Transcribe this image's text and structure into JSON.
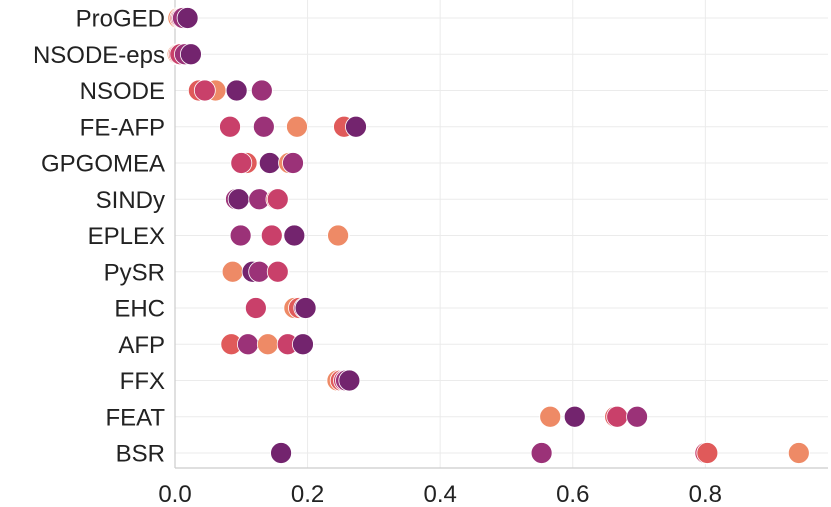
{
  "chart_data": {
    "type": "scatter",
    "title": "",
    "xlabel": "",
    "ylabel": "",
    "xlim": [
      0,
      0.985
    ],
    "xticks": [
      "0.0",
      "0.2",
      "0.4",
      "0.6",
      "0.8"
    ],
    "xtick_values": [
      0,
      0.2,
      0.4,
      0.6,
      0.8
    ],
    "grid": true,
    "palette": [
      "#ee8a66",
      "#e05a5a",
      "#c9406a",
      "#9b3278",
      "#73246e"
    ],
    "categories": [
      "ProGED",
      "NSODE-eps",
      "NSODE",
      "FE-AFP",
      "GPGOMEA",
      "SINDy",
      "EPLEX",
      "PySR",
      "EHC",
      "AFP",
      "FFX",
      "FEAT",
      "BSR"
    ],
    "points": [
      [
        {
          "x": 0.005,
          "c": 0
        },
        {
          "x": 0.008,
          "c": 1
        },
        {
          "x": 0.01,
          "c": 2
        },
        {
          "x": 0.012,
          "c": 3
        },
        {
          "x": 0.019,
          "c": 4
        }
      ],
      [
        {
          "x": 0.004,
          "c": 0
        },
        {
          "x": 0.006,
          "c": 1
        },
        {
          "x": 0.008,
          "c": 2
        },
        {
          "x": 0.015,
          "c": 3
        },
        {
          "x": 0.024,
          "c": 4
        }
      ],
      [
        {
          "x": 0.036,
          "c": 1
        },
        {
          "x": 0.061,
          "c": 0
        },
        {
          "x": 0.045,
          "c": 2
        },
        {
          "x": 0.093,
          "c": 4
        },
        {
          "x": 0.131,
          "c": 3
        }
      ],
      [
        {
          "x": 0.083,
          "c": 2
        },
        {
          "x": 0.134,
          "c": 3
        },
        {
          "x": 0.184,
          "c": 0
        },
        {
          "x": 0.255,
          "c": 1
        },
        {
          "x": 0.273,
          "c": 4
        }
      ],
      [
        {
          "x": 0.108,
          "c": 1
        },
        {
          "x": 0.1,
          "c": 2
        },
        {
          "x": 0.143,
          "c": 4
        },
        {
          "x": 0.172,
          "c": 0
        },
        {
          "x": 0.178,
          "c": 3
        }
      ],
      [
        {
          "x": 0.092,
          "c": 3
        },
        {
          "x": 0.096,
          "c": 4
        },
        {
          "x": 0.127,
          "c": 3
        },
        {
          "x": 0.153,
          "c": 1
        },
        {
          "x": 0.155,
          "c": 2
        }
      ],
      [
        {
          "x": 0.099,
          "c": 3
        },
        {
          "x": 0.146,
          "c": 2
        },
        {
          "x": 0.18,
          "c": 4
        },
        {
          "x": 0.247,
          "c": 0
        },
        {
          "x": 0.246,
          "c": 0
        }
      ],
      [
        {
          "x": 0.087,
          "c": 0
        },
        {
          "x": 0.117,
          "c": 4
        },
        {
          "x": 0.127,
          "c": 3
        },
        {
          "x": 0.156,
          "c": 2
        },
        {
          "x": 0.155,
          "c": 2
        }
      ],
      [
        {
          "x": 0.122,
          "c": 2
        },
        {
          "x": 0.18,
          "c": 0
        },
        {
          "x": 0.187,
          "c": 1
        },
        {
          "x": 0.195,
          "c": 3
        },
        {
          "x": 0.197,
          "c": 4
        }
      ],
      [
        {
          "x": 0.085,
          "c": 1
        },
        {
          "x": 0.11,
          "c": 3
        },
        {
          "x": 0.14,
          "c": 0
        },
        {
          "x": 0.17,
          "c": 2
        },
        {
          "x": 0.193,
          "c": 4
        }
      ],
      [
        {
          "x": 0.245,
          "c": 0
        },
        {
          "x": 0.25,
          "c": 1
        },
        {
          "x": 0.255,
          "c": 2
        },
        {
          "x": 0.258,
          "c": 3
        },
        {
          "x": 0.263,
          "c": 4
        }
      ],
      [
        {
          "x": 0.566,
          "c": 0
        },
        {
          "x": 0.603,
          "c": 4
        },
        {
          "x": 0.664,
          "c": 1
        },
        {
          "x": 0.667,
          "c": 2
        },
        {
          "x": 0.697,
          "c": 3
        }
      ],
      [
        {
          "x": 0.16,
          "c": 4
        },
        {
          "x": 0.553,
          "c": 3
        },
        {
          "x": 0.8,
          "c": 2
        },
        {
          "x": 0.803,
          "c": 1
        },
        {
          "x": 0.941,
          "c": 0
        }
      ]
    ]
  }
}
